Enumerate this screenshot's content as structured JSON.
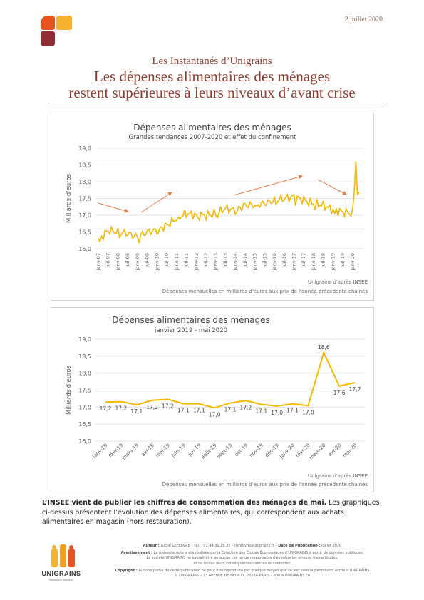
{
  "header": {
    "date": "2 juillet 2020",
    "supertitle": "Les Instantanés d’Unigrains",
    "title_line1": "Les dépenses alimentaires des ménages",
    "title_line2": "restent supérieures à leurs niveaux d’avant crise"
  },
  "chart_data": [
    {
      "type": "line",
      "title": "Dépenses alimentaires des ménages",
      "subtitle": "Grandes tendances 2007-2020 et effet du confinement",
      "ylabel": "Milliards d'euros",
      "ylim": [
        16.0,
        19.0
      ],
      "yticks": [
        "16,0",
        "16,5",
        "17,0",
        "17,5",
        "18,0",
        "18,5",
        "19,0"
      ],
      "xticks": [
        "janv-07",
        "juil-07",
        "janv-08",
        "juil-08",
        "janv-09",
        "juil-09",
        "janv-10",
        "juil-10",
        "janv-11",
        "juil-11",
        "janv-12",
        "juil-12",
        "janv-13",
        "juil-13",
        "janv-14",
        "juil-14",
        "janv-15",
        "juil-15",
        "janv-16",
        "juil-16",
        "janv-17",
        "juil-17",
        "janv-18",
        "juil-18",
        "janv-19",
        "juil-19",
        "janv-20"
      ],
      "x": [
        "2007-01",
        "2007-07",
        "2008-01",
        "2008-07",
        "2009-01",
        "2009-07",
        "2010-01",
        "2010-07",
        "2011-01",
        "2011-07",
        "2012-01",
        "2012-07",
        "2013-01",
        "2013-07",
        "2014-01",
        "2014-07",
        "2015-01",
        "2015-07",
        "2016-01",
        "2016-07",
        "2017-01",
        "2017-07",
        "2018-01",
        "2018-07",
        "2019-01",
        "2019-07",
        "2020-01",
        "2020-03",
        "2020-04",
        "2020-05"
      ],
      "series": [
        {
          "values": [
            16.25,
            16.55,
            16.5,
            16.45,
            16.35,
            16.5,
            16.55,
            16.7,
            16.9,
            17.05,
            17.0,
            17.0,
            17.05,
            17.2,
            17.15,
            17.3,
            17.3,
            17.35,
            17.45,
            17.5,
            17.55,
            17.45,
            17.35,
            17.3,
            17.15,
            17.1,
            17.05,
            18.6,
            17.6,
            17.7
          ]
        }
      ],
      "trend_arrows": "4 flèches de tendance",
      "source": "Unigrains d'après INSEE",
      "note": "Dépenses mensuelles en milliards d'euros aux prix de l'année précédente chaînés",
      "grid": true,
      "color": "#f5b800"
    },
    {
      "type": "line",
      "title": "Dépenses alimentaires des ménages",
      "subtitle": "janvier 2019 - mai 2020",
      "ylabel": "Milliards d'euros",
      "ylim": [
        16.0,
        19.0
      ],
      "yticks": [
        "16,0",
        "16,5",
        "17,0",
        "17,5",
        "18,0",
        "18,5",
        "19,0"
      ],
      "categories": [
        "janv-19",
        "févr-19",
        "mars-19",
        "avr-19",
        "mai-19",
        "juin-19",
        "juil-19",
        "août-19",
        "sept-19",
        "oct-19",
        "nov-19",
        "déc-19",
        "janv-20",
        "févr-20",
        "mars-20",
        "avr-20",
        "mai-20"
      ],
      "series": [
        {
          "values": [
            17.15,
            17.16,
            17.07,
            17.2,
            17.23,
            17.1,
            17.1,
            16.98,
            17.12,
            17.19,
            17.08,
            17.03,
            17.1,
            17.04,
            18.6,
            17.62,
            17.72
          ]
        }
      ],
      "data_labels": [
        "17,2",
        "17,2",
        "17,1",
        "17,2",
        "17,2",
        "17,1",
        "17,1",
        "17,0",
        "17,1",
        "17,2",
        "17,1",
        "17,0",
        "17,1",
        "17,0",
        "18,6",
        "17,6",
        "17,7"
      ],
      "source": "Unigrains d'après INSEE",
      "note": "Dépenses mensuelles en milliards d'euros aux prix de l'année précédente chaînés",
      "grid": true,
      "color": "#f5b800"
    }
  ],
  "intro": {
    "bold": "L’INSEE vient de publier les chiffres de consommation des ménages de mai.",
    "rest": " Les graphiques ci-dessus présentent l’évolution des dépenses alimentaires, qui correspondent aux achats alimentaires en magasin (hors restauration)."
  },
  "footer": {
    "author_label": "Auteur :",
    "author": " Lucile LEFEBVRE – tél. : 01.44.31.16.35 – llefebvre@unigrains.fr – ",
    "pubdate_label": "Date de Publication :",
    "pubdate": " Juillet 2020",
    "warning_label": "Avertissement :",
    "warning": " La présente note a été réalisée par la Direction des Études Économiques d’UNIGRAINS à partir de données publiques.",
    "line3": "La société UNIGRAINS ne saurait être en aucun cas tenue responsable d’éventuelles erreurs, inexactitudes,",
    "line4": "et de toutes leurs conséquences directes et indirectes.",
    "copyright_label": "Copyright :",
    "copyright": " Aucune partie de cette publication ne peut être reproduite par quelque moyen que ce soit sans la permission écrite d’UNIGRAINS",
    "address": "© UNIGRAINS – 23 AVENUE DE NEUILLY, 75116 PARIS – WWW.UNIGRAINS.FR"
  },
  "logo": {
    "wordmark": "UNIGRAINS",
    "tagline": "Partenaire financier"
  },
  "colors": {
    "accent": "#8b3a2c",
    "line": "#f5b800",
    "arrow": "#e8804a",
    "logo_orange": "#e8531f",
    "logo_yellow": "#f5b233",
    "logo_red": "#8e2d33"
  }
}
